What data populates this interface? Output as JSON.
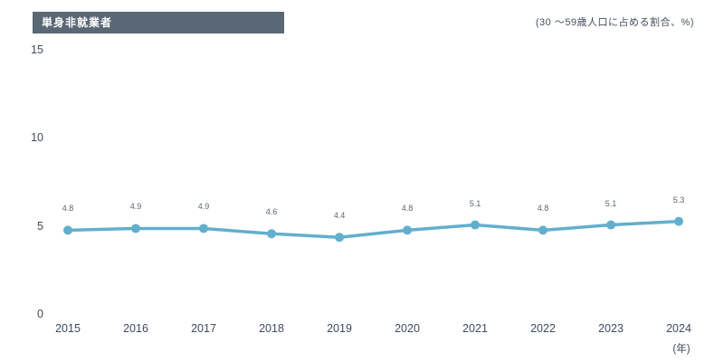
{
  "header": {
    "title": "単身非就業者"
  },
  "note": "(30 〜59歳人口に占める割合、%)",
  "chart_data": {
    "type": "line",
    "title": "単身非就業者",
    "subtitle": "(30 〜59歳人口に占める割合、%)",
    "categories": [
      "2015",
      "2016",
      "2017",
      "2018",
      "2019",
      "2020",
      "2021",
      "2022",
      "2023",
      "2024"
    ],
    "series": [
      {
        "name": "単身非就業者",
        "values": [
          4.8,
          4.9,
          4.9,
          4.6,
          4.4,
          4.8,
          5.1,
          4.8,
          5.1,
          5.3
        ]
      }
    ],
    "xlabel": "(年)",
    "ylabel": "",
    "ylim": [
      0,
      15
    ],
    "yticks": [
      0,
      5,
      10,
      15
    ],
    "grid": false,
    "legend_position": "none",
    "line_color": "#62afcd",
    "marker": "circle",
    "data_labels": true
  }
}
